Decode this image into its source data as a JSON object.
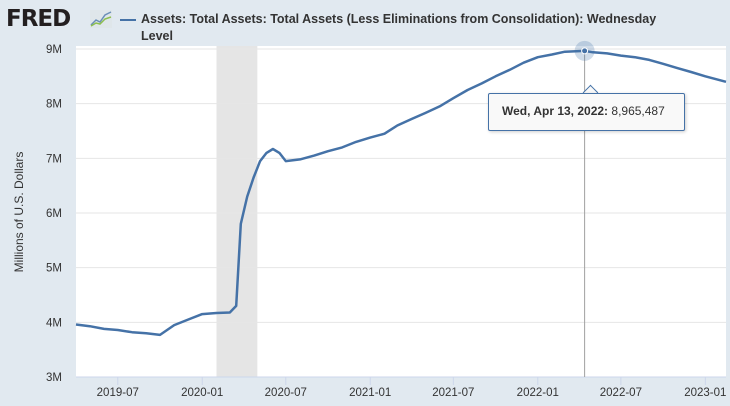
{
  "header": {
    "logo_text": "FRED",
    "logo_icon": "line-chart-icon",
    "legend_label": "Assets: Total Assets: Total Assets (Less Eliminations from Consolidation): Wednesday Level"
  },
  "tooltip": {
    "date": "Wed, Apr 13, 2022:",
    "value": "8,965,487"
  },
  "colors": {
    "series": "#4572a7",
    "recession": "#e5e5e5",
    "background": "#e1e9f0",
    "plot": "#ffffff"
  },
  "chart_data": {
    "type": "line",
    "title": "Assets: Total Assets: Total Assets (Less Eliminations from Consolidation): Wednesday Level",
    "ylabel": "Millions of U.S. Dollars",
    "xlabel": "",
    "ylim": [
      3000000,
      9000000
    ],
    "xlim": [
      "2019-04-01",
      "2023-02-15"
    ],
    "yticks": [
      "3M",
      "4M",
      "5M",
      "6M",
      "7M",
      "8M",
      "9M"
    ],
    "ytick_values": [
      3000000,
      4000000,
      5000000,
      6000000,
      7000000,
      8000000,
      9000000
    ],
    "xticks": [
      "2019-07",
      "2020-01",
      "2020-07",
      "2021-01",
      "2021-07",
      "2022-01",
      "2022-07",
      "2023-01"
    ],
    "recession": [
      "2020-02-01",
      "2020-04-30"
    ],
    "highlight": {
      "x": "2022-04-13",
      "y": 8965487
    },
    "grid": true,
    "legend": "top",
    "series": [
      {
        "name": "Assets: Total Assets: Total Assets (Less Eliminations from Consolidation): Wednesday Level",
        "x": [
          "2019-04-01",
          "2019-05-01",
          "2019-06-01",
          "2019-07-01",
          "2019-08-01",
          "2019-09-01",
          "2019-10-01",
          "2019-11-01",
          "2019-12-01",
          "2020-01-01",
          "2020-02-01",
          "2020-03-01",
          "2020-03-15",
          "2020-03-25",
          "2020-04-08",
          "2020-04-22",
          "2020-05-06",
          "2020-05-20",
          "2020-06-03",
          "2020-06-17",
          "2020-07-01",
          "2020-08-01",
          "2020-09-01",
          "2020-10-01",
          "2020-11-01",
          "2020-12-01",
          "2021-01-01",
          "2021-02-01",
          "2021-03-01",
          "2021-04-01",
          "2021-05-01",
          "2021-06-01",
          "2021-07-01",
          "2021-08-01",
          "2021-09-01",
          "2021-10-01",
          "2021-11-01",
          "2021-12-01",
          "2022-01-01",
          "2022-02-01",
          "2022-03-01",
          "2022-04-13",
          "2022-05-01",
          "2022-06-01",
          "2022-07-01",
          "2022-08-01",
          "2022-09-01",
          "2022-10-01",
          "2022-11-01",
          "2022-12-01",
          "2023-01-01",
          "2023-02-15"
        ],
        "y": [
          3960000,
          3930000,
          3880000,
          3860000,
          3820000,
          3800000,
          3770000,
          3950000,
          4050000,
          4150000,
          4170000,
          4180000,
          4300000,
          5800000,
          6300000,
          6650000,
          6950000,
          7100000,
          7170000,
          7100000,
          6950000,
          6980000,
          7050000,
          7130000,
          7200000,
          7300000,
          7380000,
          7450000,
          7600000,
          7720000,
          7830000,
          7950000,
          8100000,
          8250000,
          8370000,
          8500000,
          8620000,
          8750000,
          8850000,
          8900000,
          8950000,
          8965487,
          8940000,
          8920000,
          8880000,
          8850000,
          8800000,
          8730000,
          8650000,
          8580000,
          8500000,
          8400000
        ]
      }
    ]
  }
}
